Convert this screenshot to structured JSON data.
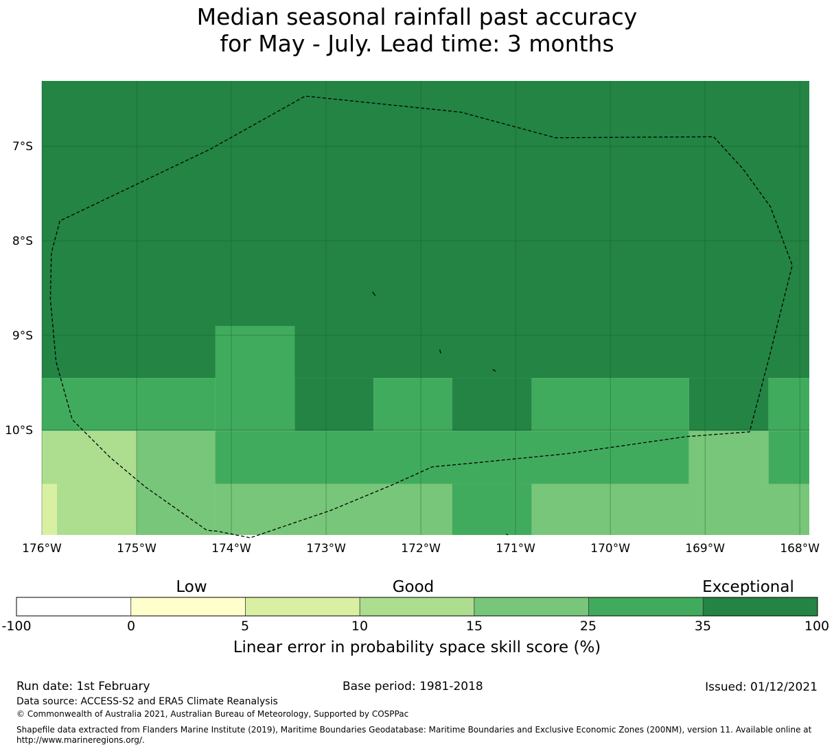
{
  "title": {
    "line1": "Median seasonal rainfall past accuracy",
    "line2": "for May - July. Lead time: 3 months"
  },
  "map": {
    "lat_labels": [
      "7°S",
      "8°S",
      "9°S",
      "10°S"
    ],
    "lat_values": [
      -7,
      -8,
      -9,
      -10
    ],
    "lon_labels": [
      "176°W",
      "175°W",
      "174°W",
      "173°W",
      "172°W",
      "171°W",
      "170°W",
      "169°W",
      "168°W"
    ],
    "lon_values": [
      -176,
      -175,
      -174,
      -173,
      -172,
      -171,
      -170,
      -169,
      -168
    ],
    "extent": {
      "lon_min": -176,
      "lon_max": -167.9,
      "lat_top": -6.31,
      "lat_bottom": -11.11
    },
    "grid_color": "#195a2d",
    "boundary_name": "Exclusive Economic Zone",
    "eez_boundary": [
      [
        -175.81,
        -7.79
      ],
      [
        -175.9,
        -8.13
      ],
      [
        -175.91,
        -8.62
      ],
      [
        -175.85,
        -9.28
      ],
      [
        -175.68,
        -9.89
      ],
      [
        -175.28,
        -10.29
      ],
      [
        -174.91,
        -10.6
      ],
      [
        -174.5,
        -10.89
      ],
      [
        -174.26,
        -11.06
      ],
      [
        -174.15,
        -11.07
      ],
      [
        -173.8,
        -11.14
      ],
      [
        -172.95,
        -10.85
      ],
      [
        -172.3,
        -10.58
      ],
      [
        -171.88,
        -10.39
      ],
      [
        -171.35,
        -10.34
      ],
      [
        -170.45,
        -10.25
      ],
      [
        -169.2,
        -10.07
      ],
      [
        -168.53,
        -10.02
      ],
      [
        -168.33,
        -9.26
      ],
      [
        -168.08,
        -8.26
      ],
      [
        -168.31,
        -7.64
      ],
      [
        -168.6,
        -7.24
      ],
      [
        -168.91,
        -6.9
      ],
      [
        -170.58,
        -6.91
      ],
      [
        -171.58,
        -6.64
      ],
      [
        -173.22,
        -6.47
      ],
      [
        -174.22,
        -7.03
      ],
      [
        -175.81,
        -7.79
      ]
    ],
    "islands": [
      [
        [
          -172.51,
          -8.54
        ],
        [
          -172.48,
          -8.58
        ]
      ],
      [
        [
          -171.8,
          -9.15
        ],
        [
          -171.79,
          -9.19
        ]
      ],
      [
        [
          -171.24,
          -9.36
        ],
        [
          -171.21,
          -9.38
        ]
      ],
      [
        [
          -171.1,
          -11.1
        ],
        [
          -171.08,
          -11.11
        ]
      ]
    ],
    "skill_cells": [
      {
        "lon0": -176,
        "lon1": -167.9,
        "lat0": -6.31,
        "lat1": -9.45,
        "cls": 6
      },
      {
        "lon0": -176,
        "lon1": -174.17,
        "lat0": -9.45,
        "lat1": -10.01,
        "cls": 5
      },
      {
        "lon0": -174.17,
        "lon1": -173.33,
        "lat0": -8.9,
        "lat1": -10.01,
        "cls": 5
      },
      {
        "lon0": -173.33,
        "lon1": -172.5,
        "lat0": -9.45,
        "lat1": -10.01,
        "cls": 6
      },
      {
        "lon0": -172.5,
        "lon1": -171.67,
        "lat0": -9.45,
        "lat1": -10.01,
        "cls": 5
      },
      {
        "lon0": -171.67,
        "lon1": -170.83,
        "lat0": -9.45,
        "lat1": -10.01,
        "cls": 6
      },
      {
        "lon0": -170.83,
        "lon1": -169.17,
        "lat0": -9.45,
        "lat1": -10.01,
        "cls": 5
      },
      {
        "lon0": -169.17,
        "lon1": -168.33,
        "lat0": -9.45,
        "lat1": -10.01,
        "cls": 6
      },
      {
        "lon0": -168.33,
        "lon1": -167.9,
        "lat0": -9.45,
        "lat1": -10.01,
        "cls": 5
      },
      {
        "lon0": -176,
        "lon1": -175,
        "lat0": -10.01,
        "lat1": -11.11,
        "cls": 3
      },
      {
        "lon0": -176,
        "lon1": -175.84,
        "lat0": -10.57,
        "lat1": -11.11,
        "cls": 2
      },
      {
        "lon0": -175,
        "lon1": -174.17,
        "lat0": -10.01,
        "lat1": -11.11,
        "cls": 4
      },
      {
        "lon0": -174.17,
        "lon1": -169.17,
        "lat0": -10.01,
        "lat1": -10.57,
        "cls": 5
      },
      {
        "lon0": -174.17,
        "lon1": -171.67,
        "lat0": -10.57,
        "lat1": -11.11,
        "cls": 4
      },
      {
        "lon0": -171.67,
        "lon1": -170.83,
        "lat0": -10.57,
        "lat1": -11.11,
        "cls": 5
      },
      {
        "lon0": -170.83,
        "lon1": -167.9,
        "lat0": -10.57,
        "lat1": -11.11,
        "cls": 4
      },
      {
        "lon0": -169.17,
        "lon1": -168.33,
        "lat0": -10.01,
        "lat1": -10.57,
        "cls": 4
      },
      {
        "lon0": -168.33,
        "lon1": -167.9,
        "lat0": -10.01,
        "lat1": -10.57,
        "cls": 5
      }
    ]
  },
  "colorbar": {
    "colors": [
      "#ffffff",
      "#ffffcc",
      "#d9f0a3",
      "#addd8e",
      "#78c679",
      "#41ab5d",
      "#238443"
    ],
    "ticks": [
      "-100",
      "0",
      "5",
      "10",
      "15",
      "25",
      "35",
      "100"
    ],
    "captions": [
      "Low",
      "Good",
      "Exceptional"
    ],
    "label": "Linear error in probability space skill score (%)"
  },
  "footer": {
    "run_date": "Run date: 1st February",
    "base_period": "Base period: 1981-2018",
    "issued": "Issued: 01/12/2021",
    "data_source": "Data source: ACCESS-S2 and ERA5 Climate Reanalysis",
    "copyright": "© Commonwealth of Australia 2021, Australian Bureau of Meteorology, Supported by COSPPac",
    "shapefile_note": "Shapefile data extracted from Flanders Marine Institute (2019), Maritime Boundaries Geodatabase: Maritime Boundaries and Exclusive Economic Zones (200NM), version 11. Available online at http://www.marineregions.org/."
  }
}
